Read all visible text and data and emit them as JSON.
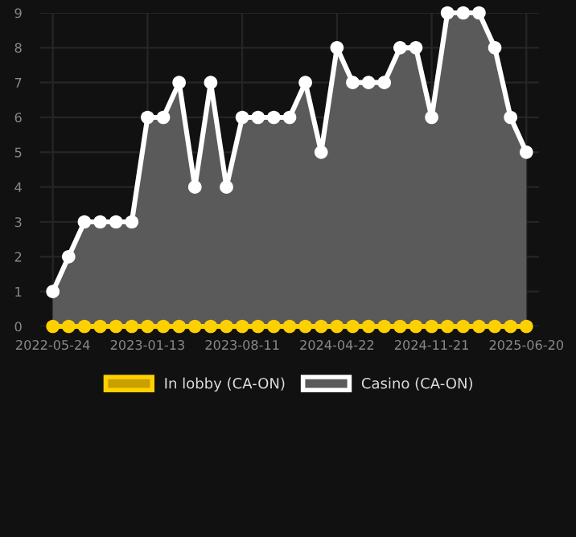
{
  "chart_data": {
    "type": "area",
    "categories": [
      "2022-05-24",
      null,
      null,
      null,
      null,
      null,
      "2023-01-13",
      null,
      null,
      null,
      null,
      null,
      "2023-08-11",
      null,
      null,
      null,
      null,
      null,
      "2024-04-22",
      null,
      null,
      null,
      null,
      null,
      "2024-11-21",
      null,
      null,
      null,
      null,
      null,
      "2025-06-20"
    ],
    "series": [
      {
        "name": "In lobby (CA-ON)",
        "type": "line",
        "color": "#ffd000",
        "values": [
          0,
          0,
          0,
          0,
          0,
          0,
          0,
          0,
          0,
          0,
          0,
          0,
          0,
          0,
          0,
          0,
          0,
          0,
          0,
          0,
          0,
          0,
          0,
          0,
          0,
          0,
          0,
          0,
          0,
          0,
          0
        ]
      },
      {
        "name": "Casino (CA-ON)",
        "color": "#ffffff",
        "values": [
          1,
          2,
          3,
          3,
          3,
          3,
          6,
          6,
          7,
          4,
          7,
          4,
          6,
          6,
          6,
          6,
          7,
          5,
          8,
          7,
          7,
          7,
          8,
          8,
          6,
          9,
          9,
          9,
          8,
          6,
          5
        ]
      }
    ],
    "ylim": [
      0,
      9
    ],
    "yticks": [
      0,
      1,
      2,
      3,
      4,
      5,
      6,
      7,
      8,
      9
    ],
    "grid": true,
    "legend": "bottom",
    "marker": "circle",
    "line_style": "solid"
  }
}
